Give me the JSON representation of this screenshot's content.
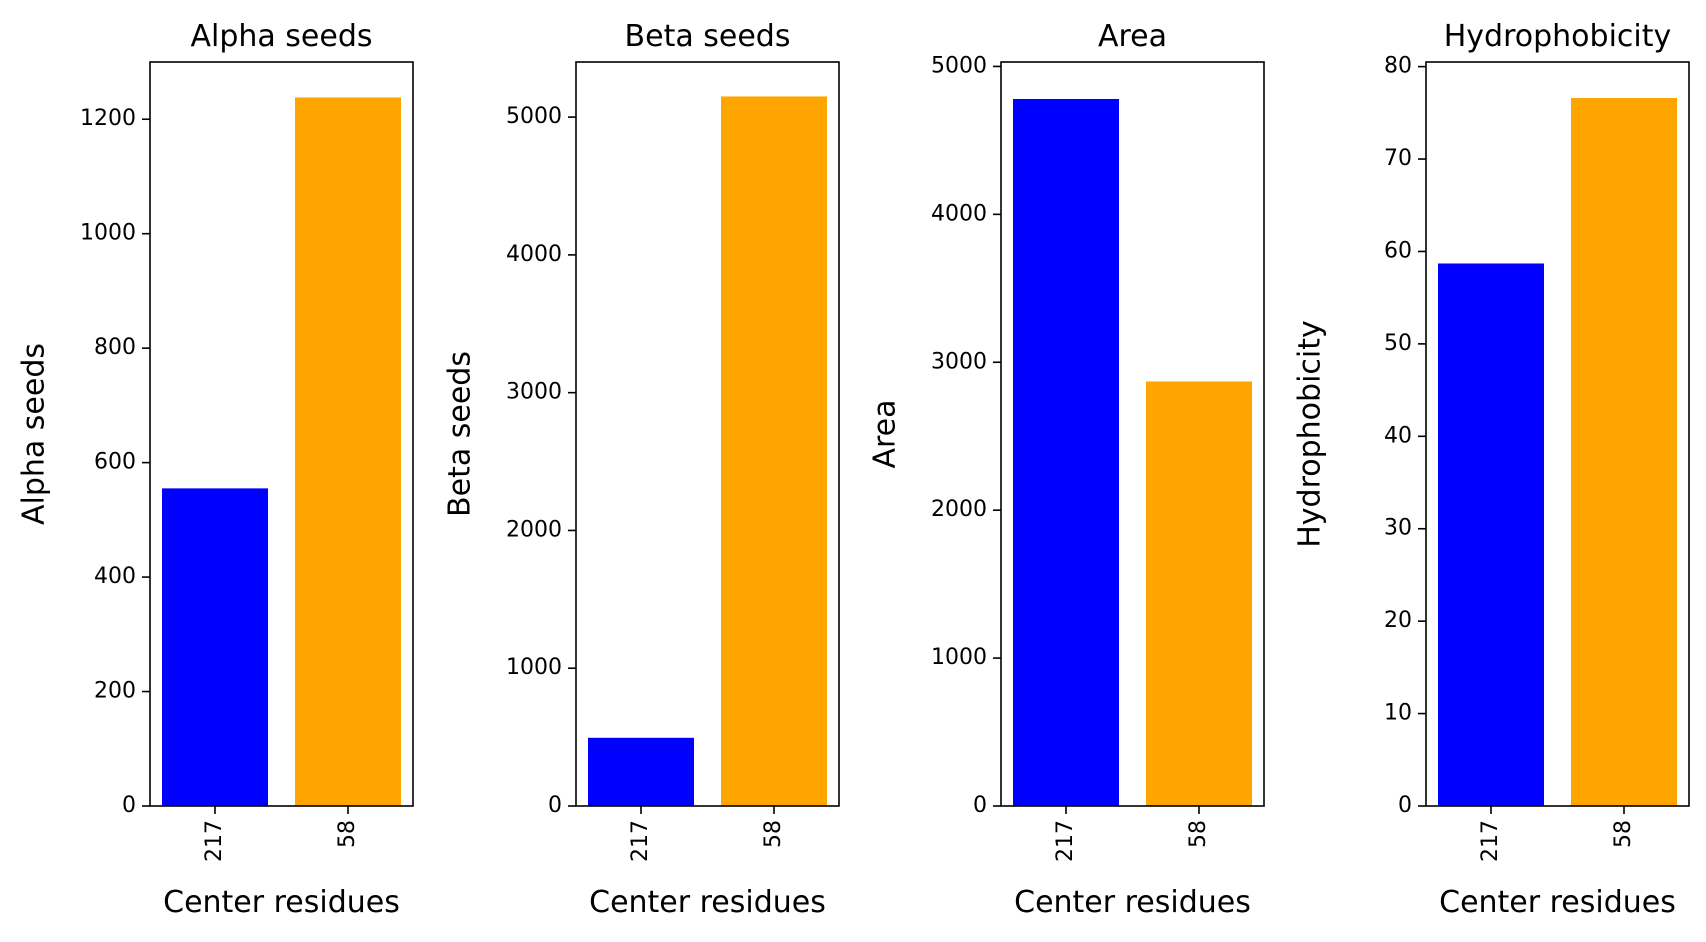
{
  "chart_data": [
    {
      "type": "bar",
      "title": "Alpha seeds",
      "xlabel": "Center residues",
      "ylabel": "Alpha seeds",
      "categories": [
        "217",
        "58"
      ],
      "values": [
        555,
        1238
      ],
      "colors": [
        "#0000ff",
        "#ffa500"
      ],
      "ylim": [
        0,
        1300
      ],
      "yticks": [
        0,
        200,
        400,
        600,
        800,
        1000,
        1200
      ],
      "ytick_labels": [
        "0",
        "200",
        "400",
        "600",
        "800",
        "1000",
        "1200"
      ],
      "grid": false,
      "legend": false
    },
    {
      "type": "bar",
      "title": "Beta seeds",
      "xlabel": "Center residues",
      "ylabel": "Beta seeds",
      "categories": [
        "217",
        "58"
      ],
      "values": [
        495,
        5150
      ],
      "colors": [
        "#0000ff",
        "#ffa500"
      ],
      "ylim": [
        0,
        5400
      ],
      "yticks": [
        0,
        1000,
        2000,
        3000,
        4000,
        5000
      ],
      "ytick_labels": [
        "0",
        "1000",
        "2000",
        "3000",
        "4000",
        "5000"
      ],
      "grid": false,
      "legend": false
    },
    {
      "type": "bar",
      "title": "Area",
      "xlabel": "Center residues",
      "ylabel": "Area",
      "categories": [
        "217",
        "58"
      ],
      "values": [
        4780,
        2870
      ],
      "colors": [
        "#0000ff",
        "#ffa500"
      ],
      "ylim": [
        0,
        5030
      ],
      "yticks": [
        0,
        1000,
        2000,
        3000,
        4000,
        5000
      ],
      "ytick_labels": [
        "0",
        "1000",
        "2000",
        "3000",
        "4000",
        "5000"
      ],
      "grid": false,
      "legend": false
    },
    {
      "type": "bar",
      "title": "Hydrophobicity",
      "xlabel": "Center residues",
      "ylabel": "Hydrophobicity",
      "categories": [
        "217",
        "58"
      ],
      "values": [
        58.7,
        76.6
      ],
      "colors": [
        "#0000ff",
        "#ffa500"
      ],
      "ylim": [
        0,
        80.5
      ],
      "yticks": [
        0,
        10,
        20,
        30,
        40,
        50,
        60,
        70,
        80
      ],
      "ytick_labels": [
        "0",
        "10",
        "20",
        "30",
        "40",
        "50",
        "60",
        "70",
        "80"
      ],
      "grid": false,
      "legend": false
    }
  ]
}
